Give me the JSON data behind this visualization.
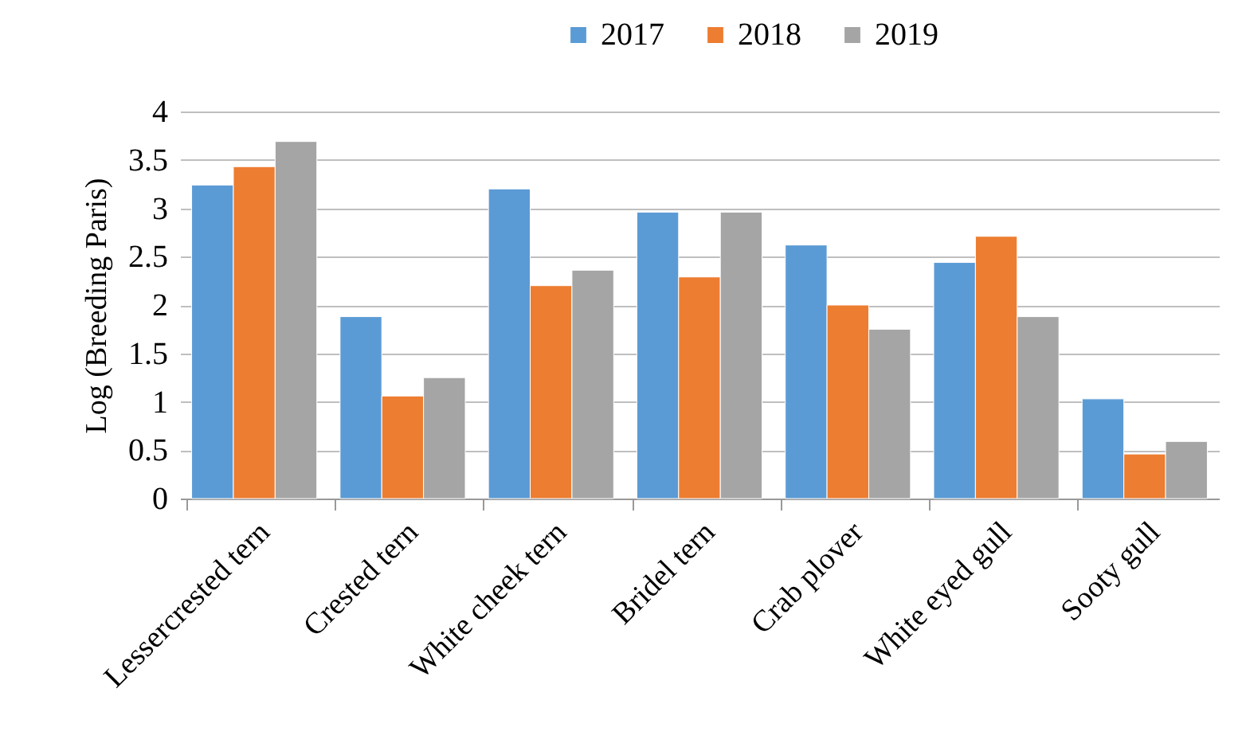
{
  "chart_data": {
    "type": "bar",
    "ylabel": "Log (Breeding Paris)",
    "categories": [
      "Lessercrested tern",
      "Crested tern",
      "White cheek tern",
      "Bridel tern",
      "Crab plover",
      "White eyed gull",
      "Sooty gull"
    ],
    "series": [
      {
        "name": "2017",
        "color": "#5b9bd5",
        "values": [
          3.24,
          1.88,
          3.2,
          2.96,
          2.62,
          2.44,
          1.03
        ]
      },
      {
        "name": "2018",
        "color": "#ed7d31",
        "values": [
          3.43,
          1.06,
          2.2,
          2.29,
          2.0,
          2.71,
          0.46
        ]
      },
      {
        "name": "2019",
        "color": "#a5a5a5",
        "values": [
          3.69,
          1.25,
          2.36,
          2.96,
          1.75,
          1.88,
          0.59
        ]
      }
    ],
    "ylim": [
      0,
      4
    ],
    "yticks": [
      0,
      0.5,
      1,
      1.5,
      2,
      2.5,
      3,
      3.5,
      4
    ],
    "grid": "y",
    "legend": "top"
  }
}
